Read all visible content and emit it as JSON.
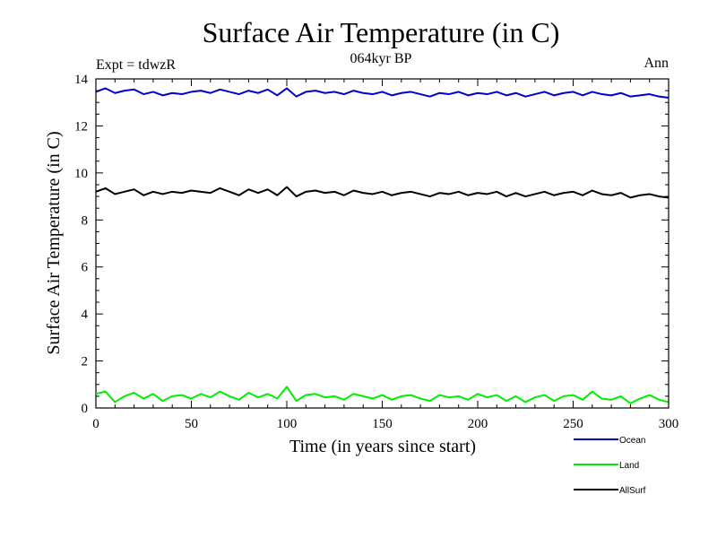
{
  "chart_data": {
    "type": "line",
    "title": "Surface Air Temperature (in C)",
    "subtitle": "064kyr BP",
    "experiment_label": "Expt = tdwzR",
    "season_label": "Ann",
    "xlabel": "Time (in years since start)",
    "ylabel": "Surface Air Temperature (in C)",
    "xlim": [
      0,
      300
    ],
    "ylim": [
      0,
      14
    ],
    "xticks": [
      0,
      50,
      100,
      150,
      200,
      250,
      300
    ],
    "yticks": [
      0,
      2,
      4,
      6,
      8,
      10,
      12,
      14
    ],
    "xtick_labels": [
      "0",
      "50",
      "100",
      "150",
      "200",
      "250",
      "300"
    ],
    "ytick_labels": [
      "0",
      "2",
      "4",
      "6",
      "8",
      "10",
      "12",
      "14"
    ],
    "grid": false,
    "legend_position": "bottom-right",
    "x": [
      0,
      5,
      10,
      15,
      20,
      25,
      30,
      35,
      40,
      45,
      50,
      55,
      60,
      65,
      70,
      75,
      80,
      85,
      90,
      95,
      100,
      105,
      110,
      115,
      120,
      125,
      130,
      135,
      140,
      145,
      150,
      155,
      160,
      165,
      170,
      175,
      180,
      185,
      190,
      195,
      200,
      205,
      210,
      215,
      220,
      225,
      230,
      235,
      240,
      245,
      250,
      255,
      260,
      265,
      270,
      275,
      280,
      285,
      290,
      295,
      300
    ],
    "series": [
      {
        "name": "Ocean",
        "color": "#0000cc",
        "values": [
          13.45,
          13.6,
          13.4,
          13.5,
          13.55,
          13.35,
          13.45,
          13.3,
          13.4,
          13.35,
          13.45,
          13.5,
          13.4,
          13.55,
          13.45,
          13.35,
          13.5,
          13.4,
          13.55,
          13.3,
          13.6,
          13.25,
          13.45,
          13.5,
          13.4,
          13.45,
          13.35,
          13.5,
          13.4,
          13.35,
          13.45,
          13.3,
          13.4,
          13.45,
          13.35,
          13.25,
          13.4,
          13.35,
          13.45,
          13.3,
          13.4,
          13.35,
          13.45,
          13.3,
          13.4,
          13.25,
          13.35,
          13.45,
          13.3,
          13.4,
          13.45,
          13.3,
          13.45,
          13.35,
          13.3,
          13.4,
          13.25,
          13.3,
          13.35,
          13.25,
          13.2
        ]
      },
      {
        "name": "Land",
        "color": "#00ee00",
        "values": [
          0.6,
          0.7,
          0.25,
          0.5,
          0.65,
          0.4,
          0.6,
          0.3,
          0.5,
          0.55,
          0.4,
          0.6,
          0.45,
          0.7,
          0.5,
          0.35,
          0.65,
          0.45,
          0.6,
          0.4,
          0.9,
          0.3,
          0.55,
          0.6,
          0.45,
          0.5,
          0.35,
          0.6,
          0.5,
          0.4,
          0.55,
          0.35,
          0.5,
          0.55,
          0.4,
          0.3,
          0.55,
          0.45,
          0.5,
          0.35,
          0.6,
          0.45,
          0.55,
          0.3,
          0.5,
          0.25,
          0.45,
          0.55,
          0.3,
          0.5,
          0.55,
          0.35,
          0.7,
          0.4,
          0.35,
          0.5,
          0.2,
          0.4,
          0.55,
          0.35,
          0.25
        ]
      },
      {
        "name": "AllSurf",
        "color": "#000000",
        "values": [
          9.2,
          9.35,
          9.1,
          9.2,
          9.3,
          9.05,
          9.2,
          9.1,
          9.2,
          9.15,
          9.25,
          9.2,
          9.15,
          9.35,
          9.2,
          9.05,
          9.3,
          9.15,
          9.3,
          9.05,
          9.4,
          9.0,
          9.2,
          9.25,
          9.15,
          9.2,
          9.05,
          9.25,
          9.15,
          9.1,
          9.2,
          9.05,
          9.15,
          9.2,
          9.1,
          9.0,
          9.15,
          9.1,
          9.2,
          9.05,
          9.15,
          9.1,
          9.2,
          9.0,
          9.15,
          9.0,
          9.1,
          9.2,
          9.05,
          9.15,
          9.2,
          9.05,
          9.25,
          9.1,
          9.05,
          9.15,
          8.95,
          9.05,
          9.1,
          9.0,
          8.95
        ]
      }
    ]
  }
}
